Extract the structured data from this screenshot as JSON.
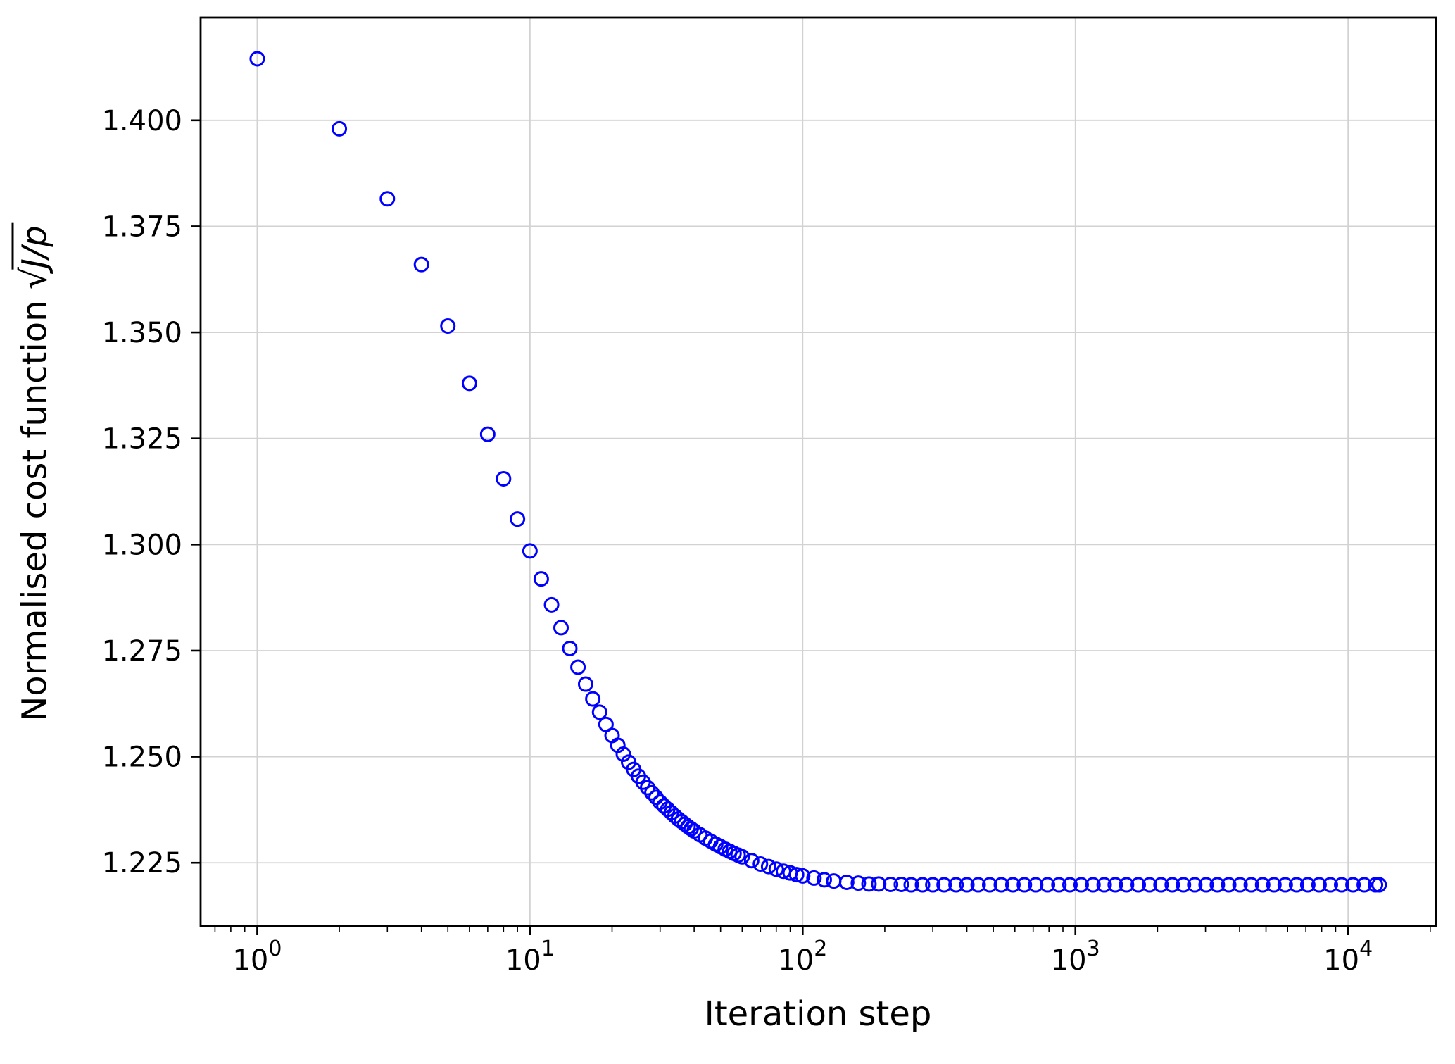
{
  "chart_data": {
    "type": "scatter",
    "title": "",
    "xlabel": "Iteration step",
    "ylabel_prefix": "Normalised cost function ",
    "ylabel_sqrt": "√",
    "ylabel_radicand": "J/p",
    "x_scale": "log",
    "y_scale": "linear",
    "xlim": [
      0.62,
      21000
    ],
    "ylim": [
      1.2101,
      1.4242
    ],
    "grid": true,
    "grid_color": "#d2d2d2",
    "axis_color": "#000000",
    "x_ticks": [
      [
        1,
        "0"
      ],
      [
        10,
        "1"
      ],
      [
        100,
        "2"
      ],
      [
        1000,
        "3"
      ],
      [
        10000,
        "4"
      ]
    ],
    "x_tick_base": "10",
    "y_ticks": [
      [
        1.225,
        "1.225"
      ],
      [
        1.25,
        "1.250"
      ],
      [
        1.275,
        "1.275"
      ],
      [
        1.3,
        "1.300"
      ],
      [
        1.325,
        "1.325"
      ],
      [
        1.35,
        "1.350"
      ],
      [
        1.375,
        "1.375"
      ],
      [
        1.4,
        "1.400"
      ]
    ],
    "marker": {
      "shape": "circle",
      "color": "#0000ff",
      "fill": "none",
      "radius": 9.5,
      "stroke_width": 3
    },
    "points": [
      [
        1,
        1.4145
      ],
      [
        2,
        1.398
      ],
      [
        3,
        1.3815
      ],
      [
        4,
        1.366
      ],
      [
        5,
        1.3515
      ],
      [
        6,
        1.338
      ],
      [
        7,
        1.326
      ],
      [
        8,
        1.3155
      ],
      [
        9,
        1.306
      ],
      [
        10,
        1.2985
      ],
      [
        11,
        1.2919
      ],
      [
        12,
        1.2858
      ],
      [
        13,
        1.2804
      ],
      [
        14,
        1.2755
      ],
      [
        15,
        1.2711
      ],
      [
        16,
        1.2671
      ],
      [
        17,
        1.2636
      ],
      [
        18,
        1.2605
      ],
      [
        19,
        1.2576
      ],
      [
        20,
        1.255
      ],
      [
        21,
        1.2527
      ],
      [
        22,
        1.2506
      ],
      [
        23,
        1.2487
      ],
      [
        24,
        1.247
      ],
      [
        25,
        1.2454
      ],
      [
        26,
        1.244
      ],
      [
        27,
        1.2427
      ],
      [
        28,
        1.2415
      ],
      [
        29,
        1.2404
      ],
      [
        30,
        1.2393
      ],
      [
        31,
        1.2384
      ],
      [
        32,
        1.2376
      ],
      [
        33,
        1.2368
      ],
      [
        34,
        1.236
      ],
      [
        35,
        1.2353
      ],
      [
        36,
        1.2347
      ],
      [
        37,
        1.2341
      ],
      [
        38,
        1.2335
      ],
      [
        39,
        1.233
      ],
      [
        40,
        1.2325
      ],
      [
        42,
        1.2316
      ],
      [
        44,
        1.2308
      ],
      [
        46,
        1.2301
      ],
      [
        48,
        1.2294
      ],
      [
        50,
        1.2288
      ],
      [
        52,
        1.2282
      ],
      [
        54,
        1.2277
      ],
      [
        56,
        1.2272
      ],
      [
        58,
        1.2268
      ],
      [
        60,
        1.2264
      ],
      [
        65,
        1.2255
      ],
      [
        70,
        1.2247
      ],
      [
        75,
        1.2241
      ],
      [
        80,
        1.2235
      ],
      [
        85,
        1.223
      ],
      [
        90,
        1.2226
      ],
      [
        95,
        1.2222
      ],
      [
        100,
        1.2219
      ],
      [
        110,
        1.2214
      ],
      [
        120,
        1.221
      ],
      [
        130,
        1.2207
      ],
      [
        145,
        1.2204
      ],
      [
        160,
        1.2202
      ],
      [
        175,
        1.22
      ],
      [
        190,
        1.22
      ],
      [
        210,
        1.2199
      ],
      [
        230,
        1.2199
      ],
      [
        250,
        1.2198
      ],
      [
        275,
        1.2198
      ],
      [
        300,
        1.2198
      ],
      [
        330,
        1.2198
      ],
      [
        365,
        1.2198
      ],
      [
        400,
        1.2198
      ],
      [
        440,
        1.2198
      ],
      [
        485,
        1.2198
      ],
      [
        535,
        1.2198
      ],
      [
        590,
        1.2198
      ],
      [
        650,
        1.2198
      ],
      [
        715,
        1.2198
      ],
      [
        790,
        1.2198
      ],
      [
        870,
        1.2198
      ],
      [
        955,
        1.2198
      ],
      [
        1050,
        1.2198
      ],
      [
        1160,
        1.2198
      ],
      [
        1275,
        1.2198
      ],
      [
        1400,
        1.2198
      ],
      [
        1540,
        1.2198
      ],
      [
        1700,
        1.2198
      ],
      [
        1870,
        1.2198
      ],
      [
        2060,
        1.2198
      ],
      [
        2265,
        1.2198
      ],
      [
        2490,
        1.2198
      ],
      [
        2740,
        1.2198
      ],
      [
        3015,
        1.2198
      ],
      [
        3315,
        1.2198
      ],
      [
        3650,
        1.2198
      ],
      [
        4015,
        1.2198
      ],
      [
        4415,
        1.2198
      ],
      [
        4860,
        1.2198
      ],
      [
        5345,
        1.2198
      ],
      [
        5880,
        1.2198
      ],
      [
        6470,
        1.2198
      ],
      [
        7115,
        1.2198
      ],
      [
        7825,
        1.2198
      ],
      [
        8610,
        1.2198
      ],
      [
        9470,
        1.2198
      ],
      [
        10420,
        1.2198
      ],
      [
        11460,
        1.2198
      ],
      [
        12600,
        1.2198
      ],
      [
        13000,
        1.2198
      ]
    ]
  }
}
